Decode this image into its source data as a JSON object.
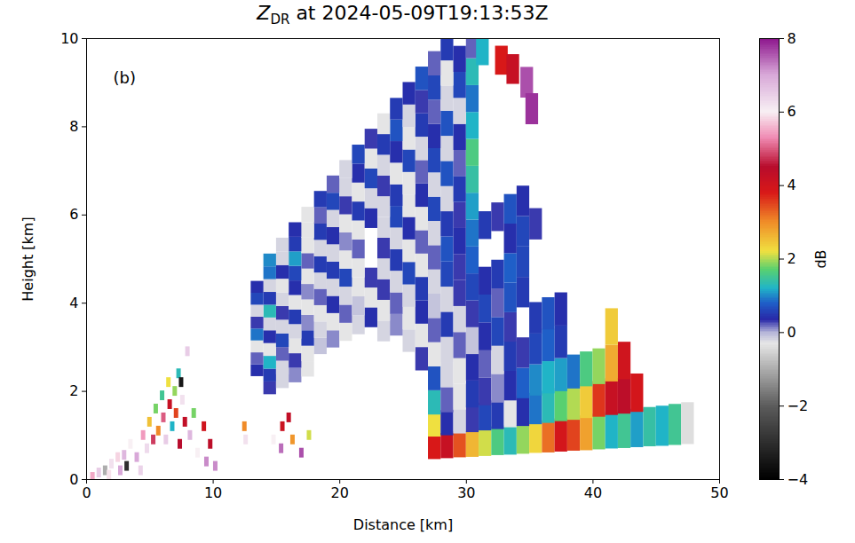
{
  "chart_data": {
    "type": "heatmap",
    "title": "ZDR at 2024-05-09T19:13:53Z",
    "panel_label": "(b)",
    "xlabel": "Distance [km]",
    "ylabel": "Height [km]",
    "xlim": [
      0,
      50
    ],
    "xticks": [
      0,
      10,
      20,
      30,
      40,
      50
    ],
    "ylim": [
      0,
      10
    ],
    "yticks": [
      0,
      2,
      4,
      6,
      8,
      10
    ],
    "colorbar": {
      "label": "dB",
      "lim": [
        -4,
        8
      ],
      "ticks": [
        -4,
        -2,
        0,
        2,
        4,
        6,
        8
      ]
    },
    "cells": [
      [
        27.5,
        0.73,
        3.8
      ],
      [
        28.5,
        0.76,
        4.2
      ],
      [
        29.5,
        0.79,
        3.4
      ],
      [
        30.5,
        0.81,
        2.6
      ],
      [
        31.5,
        0.84,
        2.1
      ],
      [
        32.5,
        0.87,
        1.6
      ],
      [
        33.5,
        0.89,
        1.3
      ],
      [
        34.5,
        0.92,
        1.9
      ],
      [
        35.5,
        0.95,
        2.3
      ],
      [
        36.5,
        0.97,
        3.2
      ],
      [
        37.5,
        1.0,
        3.9
      ],
      [
        38.5,
        1.03,
        3.5
      ],
      [
        39.5,
        1.05,
        2.8
      ],
      [
        40.5,
        1.08,
        1.8
      ],
      [
        41.5,
        1.11,
        1.2
      ],
      [
        42.5,
        1.13,
        1.5
      ],
      [
        43.5,
        1.16,
        1.1
      ],
      [
        44.5,
        1.19,
        1.4
      ],
      [
        45.5,
        1.21,
        1.2
      ],
      [
        46.5,
        1.24,
        1.5
      ],
      [
        47.5,
        1.27,
        -0.4
      ],
      [
        27.5,
        1.24,
        2.2
      ],
      [
        28.5,
        1.28,
        0.4
      ],
      [
        29.5,
        1.33,
        -0.2
      ],
      [
        30.5,
        1.37,
        0.3
      ],
      [
        31.5,
        1.42,
        0.6
      ],
      [
        32.5,
        1.46,
        0.5
      ],
      [
        33.5,
        1.51,
        -0.3
      ],
      [
        34.5,
        1.55,
        0.4
      ],
      [
        35.5,
        1.6,
        0.9
      ],
      [
        36.5,
        1.64,
        1.3
      ],
      [
        37.5,
        1.69,
        1.7
      ],
      [
        38.5,
        1.73,
        2.0
      ],
      [
        39.5,
        1.78,
        2.4
      ],
      [
        40.5,
        1.82,
        3.6
      ],
      [
        41.5,
        1.87,
        4.2
      ],
      [
        42.5,
        1.91,
        4.4
      ],
      [
        43.5,
        1.96,
        3.9
      ],
      [
        27.5,
        1.74,
        1.3
      ],
      [
        28.5,
        1.8,
        0.2
      ],
      [
        29.5,
        1.87,
        -0.3
      ],
      [
        30.5,
        1.93,
        0.5
      ],
      [
        31.5,
        1.99,
        0.3
      ],
      [
        32.5,
        2.06,
        0.1
      ],
      [
        33.5,
        2.12,
        0.4
      ],
      [
        34.5,
        2.18,
        0.8
      ],
      [
        35.5,
        2.25,
        1.0
      ],
      [
        36.5,
        2.31,
        1.2
      ],
      [
        37.5,
        2.37,
        1.1
      ],
      [
        38.5,
        2.44,
        0.9
      ],
      [
        39.5,
        2.5,
        1.6
      ],
      [
        40.5,
        2.56,
        1.9
      ],
      [
        41.5,
        2.63,
        2.7
      ],
      [
        42.5,
        2.69,
        4.0
      ],
      [
        27.5,
        2.29,
        0.7
      ],
      [
        28.5,
        2.37,
        -0.2
      ],
      [
        29.5,
        2.46,
        -0.3
      ],
      [
        30.5,
        2.54,
        0.4
      ],
      [
        31.5,
        2.62,
        0.2
      ],
      [
        32.5,
        2.71,
        -0.2
      ],
      [
        33.5,
        2.79,
        0.5
      ],
      [
        34.5,
        2.87,
        0.3
      ],
      [
        35.5,
        2.96,
        0.6
      ],
      [
        36.5,
        3.04,
        0.8
      ],
      [
        37.5,
        3.12,
        0.5
      ],
      [
        41.5,
        3.46,
        2.4
      ],
      [
        26.5,
        2.73,
        0.3
      ],
      [
        27.5,
        2.83,
        -0.3
      ],
      [
        28.5,
        2.94,
        -0.2
      ],
      [
        29.5,
        3.04,
        0.2
      ],
      [
        30.5,
        3.14,
        -0.1
      ],
      [
        31.5,
        3.24,
        0.4
      ],
      [
        32.5,
        3.35,
        0.6
      ],
      [
        33.5,
        3.45,
        0.3
      ],
      [
        35.5,
        3.66,
        0.5
      ],
      [
        36.5,
        3.76,
        0.7
      ],
      [
        37.5,
        3.86,
        0.4
      ],
      [
        25.5,
        3.14,
        -0.2
      ],
      [
        26.5,
        3.26,
        -0.3
      ],
      [
        27.5,
        3.38,
        0.2
      ],
      [
        28.5,
        3.51,
        0.5
      ],
      [
        29.5,
        3.63,
        -0.2
      ],
      [
        30.5,
        3.75,
        0.3
      ],
      [
        31.5,
        3.87,
        0.6
      ],
      [
        32.5,
        4.0,
        0.2
      ],
      [
        33.5,
        4.12,
        0.7
      ],
      [
        34.5,
        4.24,
        0.5
      ],
      [
        14.5,
        2.07,
        0.3
      ],
      [
        15.5,
        2.22,
        -0.2
      ],
      [
        16.5,
        2.36,
        0.1
      ],
      [
        17.5,
        2.5,
        -0.3
      ],
      [
        23.5,
        3.36,
        -0.2
      ],
      [
        24.5,
        3.5,
        0.1
      ],
      [
        25.5,
        3.65,
        -0.3
      ],
      [
        26.5,
        3.79,
        0.4
      ],
      [
        27.5,
        3.93,
        -0.1
      ],
      [
        28.5,
        4.08,
        -0.2
      ],
      [
        29.5,
        4.22,
        0.3
      ],
      [
        30.5,
        4.36,
        0.6
      ],
      [
        31.5,
        4.5,
        0.4
      ],
      [
        32.5,
        4.65,
        0.5
      ],
      [
        33.5,
        4.79,
        0.8
      ],
      [
        34.5,
        4.93,
        0.6
      ],
      [
        14.5,
        2.36,
        0.5
      ],
      [
        15.5,
        2.53,
        -0.2
      ],
      [
        16.5,
        2.69,
        0.3
      ],
      [
        17.5,
        2.85,
        -0.3
      ],
      [
        18.5,
        3.02,
        -0.1
      ],
      [
        19.5,
        3.18,
        0.1
      ],
      [
        20.5,
        3.34,
        -0.3
      ],
      [
        21.5,
        3.5,
        -0.2
      ],
      [
        22.5,
        3.67,
        0.4
      ],
      [
        23.5,
        3.83,
        -0.3
      ],
      [
        24.5,
        3.99,
        0.2
      ],
      [
        25.5,
        4.16,
        -0.2
      ],
      [
        26.5,
        4.32,
        0.5
      ],
      [
        27.5,
        4.48,
        -0.2
      ],
      [
        28.5,
        4.65,
        0.6
      ],
      [
        29.5,
        4.81,
        0.3
      ],
      [
        30.5,
        4.97,
        0.8
      ],
      [
        33.5,
        5.46,
        0.4
      ],
      [
        34.5,
        5.62,
        0.6
      ],
      [
        35.5,
        5.79,
        0.3
      ],
      [
        13.5,
        2.47,
        0.4
      ],
      [
        14.5,
        2.65,
        1.2
      ],
      [
        15.5,
        2.84,
        0.2
      ],
      [
        16.5,
        3.02,
        -0.3
      ],
      [
        17.5,
        3.2,
        0.5
      ],
      [
        18.5,
        3.39,
        -0.2
      ],
      [
        19.5,
        3.57,
        -0.3
      ],
      [
        20.5,
        3.75,
        0.2
      ],
      [
        21.5,
        3.93,
        -0.1
      ],
      [
        22.5,
        4.12,
        -0.3
      ],
      [
        23.5,
        4.3,
        0.3
      ],
      [
        24.5,
        4.48,
        -0.2
      ],
      [
        25.5,
        4.67,
        0.6
      ],
      [
        26.5,
        4.85,
        -0.3
      ],
      [
        27.5,
        5.03,
        0.2
      ],
      [
        28.5,
        5.22,
        0.7
      ],
      [
        29.5,
        5.4,
        0.4
      ],
      [
        30.5,
        5.58,
        0.9
      ],
      [
        31.5,
        5.76,
        0.5
      ],
      [
        32.5,
        5.95,
        0.3
      ],
      [
        33.5,
        6.13,
        0.7
      ],
      [
        34.5,
        6.31,
        0.4
      ],
      [
        13.5,
        2.74,
        0.2
      ],
      [
        14.5,
        2.94,
        -0.3
      ],
      [
        15.5,
        3.15,
        0.6
      ],
      [
        16.5,
        3.35,
        -0.2
      ],
      [
        17.5,
        3.55,
        0.1
      ],
      [
        18.5,
        3.76,
        -0.3
      ],
      [
        19.5,
        3.96,
        0.4
      ],
      [
        20.5,
        4.16,
        -0.2
      ],
      [
        21.5,
        4.36,
        -0.3
      ],
      [
        22.5,
        4.57,
        0.3
      ],
      [
        23.5,
        4.77,
        -0.2
      ],
      [
        24.5,
        4.97,
        0.5
      ],
      [
        25.5,
        5.18,
        -0.3
      ],
      [
        26.5,
        5.38,
        0.2
      ],
      [
        27.5,
        5.58,
        -0.2
      ],
      [
        28.5,
        5.79,
        0.5
      ],
      [
        29.5,
        5.99,
        0.3
      ],
      [
        30.5,
        6.19,
        1.1
      ],
      [
        13.5,
        3.01,
        -0.3
      ],
      [
        14.5,
        3.23,
        0.4
      ],
      [
        15.5,
        3.46,
        -0.2
      ],
      [
        16.5,
        3.68,
        0.5
      ],
      [
        17.5,
        3.9,
        -0.3
      ],
      [
        18.5,
        4.13,
        0.2
      ],
      [
        19.5,
        4.35,
        -0.2
      ],
      [
        20.5,
        4.57,
        0.6
      ],
      [
        21.5,
        4.79,
        -0.3
      ],
      [
        23.5,
        5.24,
        0.3
      ],
      [
        24.5,
        5.46,
        -0.2
      ],
      [
        25.5,
        5.69,
        0.4
      ],
      [
        26.5,
        5.91,
        -0.3
      ],
      [
        27.5,
        6.13,
        0.6
      ],
      [
        28.5,
        6.36,
        -0.2
      ],
      [
        29.5,
        6.58,
        0.5
      ],
      [
        30.5,
        6.8,
        1.4
      ],
      [
        13.5,
        3.28,
        0.9
      ],
      [
        14.5,
        3.52,
        -0.2
      ],
      [
        15.5,
        3.77,
        0.3
      ],
      [
        16.5,
        4.01,
        -0.3
      ],
      [
        17.5,
        4.25,
        0.1
      ],
      [
        18.5,
        4.5,
        -0.2
      ],
      [
        19.5,
        4.74,
        0.5
      ],
      [
        20.5,
        4.98,
        -0.3
      ],
      [
        21.5,
        5.22,
        0.2
      ],
      [
        23.5,
        5.71,
        -0.2
      ],
      [
        24.5,
        5.95,
        0.6
      ],
      [
        25.5,
        6.2,
        -0.3
      ],
      [
        26.5,
        6.44,
        0.4
      ],
      [
        27.5,
        6.68,
        -0.2
      ],
      [
        28.5,
        6.93,
        0.7
      ],
      [
        29.5,
        7.17,
        0.2
      ],
      [
        30.5,
        7.41,
        1.6
      ],
      [
        13.5,
        3.55,
        0.3
      ],
      [
        14.5,
        3.81,
        1.3
      ],
      [
        15.5,
        4.08,
        -0.2
      ],
      [
        16.5,
        4.34,
        0.4
      ],
      [
        17.5,
        4.6,
        -0.3
      ],
      [
        18.5,
        4.87,
        0.5
      ],
      [
        19.5,
        5.13,
        -0.2
      ],
      [
        20.5,
        5.39,
        0.1
      ],
      [
        21.5,
        5.65,
        -0.3
      ],
      [
        22.5,
        5.92,
        0.4
      ],
      [
        23.5,
        6.18,
        -0.2
      ],
      [
        24.5,
        6.44,
        0.5
      ],
      [
        25.5,
        6.71,
        -0.3
      ],
      [
        26.5,
        6.97,
        0.2
      ],
      [
        27.5,
        7.23,
        0.6
      ],
      [
        28.5,
        7.5,
        -0.2
      ],
      [
        29.5,
        7.76,
        0.4
      ],
      [
        30.5,
        8.02,
        1.2
      ],
      [
        13.5,
        3.82,
        -0.2
      ],
      [
        14.5,
        4.1,
        0.5
      ],
      [
        15.5,
        4.39,
        -0.3
      ],
      [
        16.5,
        4.67,
        0.6
      ],
      [
        17.5,
        4.95,
        0.2
      ],
      [
        18.5,
        5.24,
        -0.2
      ],
      [
        19.5,
        5.52,
        0.4
      ],
      [
        20.5,
        5.8,
        -0.3
      ],
      [
        21.5,
        6.08,
        0.5
      ],
      [
        22.5,
        6.37,
        -0.2
      ],
      [
        23.5,
        6.65,
        0.3
      ],
      [
        24.5,
        6.93,
        -0.3
      ],
      [
        25.5,
        7.22,
        0.6
      ],
      [
        26.5,
        7.5,
        -0.2
      ],
      [
        27.5,
        7.78,
        0.4
      ],
      [
        28.5,
        8.07,
        0.7
      ],
      [
        29.5,
        8.35,
        -0.2
      ],
      [
        30.5,
        8.63,
        0.9
      ],
      [
        13.5,
        4.09,
        0.6
      ],
      [
        14.5,
        4.39,
        -0.2
      ],
      [
        15.5,
        4.7,
        0.4
      ],
      [
        16.5,
        5.0,
        1.1
      ],
      [
        17.5,
        5.3,
        -0.3
      ],
      [
        18.5,
        5.61,
        0.5
      ],
      [
        19.5,
        5.91,
        -0.2
      ],
      [
        20.5,
        6.21,
        0.3
      ],
      [
        21.5,
        6.51,
        -0.3
      ],
      [
        22.5,
        6.82,
        0.6
      ],
      [
        23.5,
        7.12,
        -0.2
      ],
      [
        24.5,
        7.42,
        0.4
      ],
      [
        25.5,
        7.73,
        -0.3
      ],
      [
        26.5,
        8.03,
        0.5
      ],
      [
        27.5,
        8.33,
        0.2
      ],
      [
        28.5,
        8.64,
        -0.2
      ],
      [
        29.5,
        8.94,
        0.6
      ],
      [
        30.5,
        9.24,
        1.3
      ],
      [
        13.5,
        4.36,
        0.4
      ],
      [
        14.5,
        4.68,
        0.9
      ],
      [
        15.5,
        5.01,
        -0.2
      ],
      [
        16.5,
        5.33,
        0.5
      ],
      [
        17.5,
        5.65,
        -0.3
      ],
      [
        18.5,
        5.98,
        0.2
      ],
      [
        19.5,
        6.3,
        0.6
      ],
      [
        20.5,
        6.62,
        -0.2
      ],
      [
        21.5,
        6.94,
        0.4
      ],
      [
        22.5,
        7.27,
        -0.3
      ],
      [
        23.5,
        7.59,
        0.5
      ],
      [
        24.5,
        7.91,
        0.7
      ],
      [
        25.5,
        8.24,
        -0.2
      ],
      [
        26.5,
        8.56,
        0.3
      ],
      [
        27.5,
        8.88,
        0.6
      ],
      [
        28.5,
        9.21,
        -0.3
      ],
      [
        29.5,
        9.53,
        0.4
      ],
      [
        30.5,
        9.85,
        0.2
      ],
      [
        14.5,
        4.97,
        1.0
      ],
      [
        15.5,
        5.32,
        -0.2
      ],
      [
        16.5,
        5.66,
        0.4
      ],
      [
        17.5,
        6.0,
        -0.3
      ],
      [
        18.5,
        6.35,
        0.5
      ],
      [
        19.5,
        6.69,
        0.2
      ],
      [
        20.5,
        7.03,
        -0.2
      ],
      [
        21.5,
        7.37,
        0.6
      ],
      [
        22.5,
        7.72,
        0.3
      ],
      [
        23.5,
        8.06,
        -0.3
      ],
      [
        24.5,
        8.4,
        0.5
      ],
      [
        25.5,
        8.75,
        0.4
      ],
      [
        26.5,
        9.09,
        0.7
      ],
      [
        27.5,
        9.43,
        0.2
      ],
      [
        28.5,
        9.78,
        0.5
      ],
      [
        31.3,
        9.7,
        1.2
      ],
      [
        32.8,
        9.5,
        3.8
      ],
      [
        33.7,
        9.3,
        4.2
      ],
      [
        34.8,
        9.0,
        7.6
      ],
      [
        35.2,
        8.4,
        7.8
      ],
      [
        0.5,
        0.05,
        5.5
      ],
      [
        1.0,
        0.15,
        6.5
      ],
      [
        1.5,
        0.2,
        -1.0
      ],
      [
        1.8,
        0.1,
        5.9
      ],
      [
        2.0,
        0.35,
        6.2
      ],
      [
        2.5,
        0.5,
        5.8
      ],
      [
        2.7,
        0.2,
        7.0
      ],
      [
        3.0,
        0.55,
        6.8
      ],
      [
        3.2,
        0.3,
        -3.0
      ],
      [
        3.5,
        0.8,
        6.0
      ],
      [
        4.0,
        0.5,
        7.0
      ],
      [
        4.3,
        0.2,
        6.4
      ],
      [
        4.5,
        1.0,
        5.4
      ],
      [
        4.8,
        0.7,
        6.3
      ],
      [
        5.0,
        1.3,
        2.5
      ],
      [
        5.3,
        0.9,
        4.8
      ],
      [
        5.5,
        1.6,
        1.8
      ],
      [
        5.7,
        1.1,
        3.0
      ],
      [
        6.0,
        1.9,
        1.5
      ],
      [
        6.1,
        1.4,
        5.0
      ],
      [
        6.3,
        0.9,
        6.5
      ],
      [
        6.5,
        2.2,
        2.2
      ],
      [
        6.6,
        1.7,
        4.2
      ],
      [
        6.8,
        1.2,
        1.2
      ],
      [
        7.0,
        2.0,
        1.9
      ],
      [
        7.1,
        1.5,
        3.5
      ],
      [
        7.3,
        2.4,
        1.3
      ],
      [
        7.4,
        0.8,
        4.5
      ],
      [
        7.5,
        2.2,
        -3.5
      ],
      [
        7.6,
        1.8,
        6.2
      ],
      [
        7.8,
        1.3,
        4.3
      ],
      [
        8.0,
        2.9,
        6.5
      ],
      [
        8.2,
        1.0,
        6.8
      ],
      [
        8.5,
        1.5,
        1.8
      ],
      [
        8.8,
        0.6,
        6.0
      ],
      [
        9.3,
        1.2,
        4.0
      ],
      [
        9.5,
        0.4,
        7.2
      ],
      [
        9.8,
        0.8,
        4.4
      ],
      [
        10.2,
        0.3,
        7.2
      ],
      [
        12.5,
        1.2,
        3.0
      ],
      [
        12.6,
        0.9,
        6.2
      ],
      [
        14.8,
        0.9,
        6.0
      ],
      [
        15.4,
        0.7,
        7.4
      ],
      [
        15.5,
        1.2,
        4.1
      ],
      [
        16.0,
        1.4,
        4.3
      ],
      [
        16.3,
        0.9,
        2.9
      ],
      [
        17.0,
        0.6,
        7.6
      ],
      [
        17.6,
        1.0,
        2.1
      ]
    ]
  }
}
